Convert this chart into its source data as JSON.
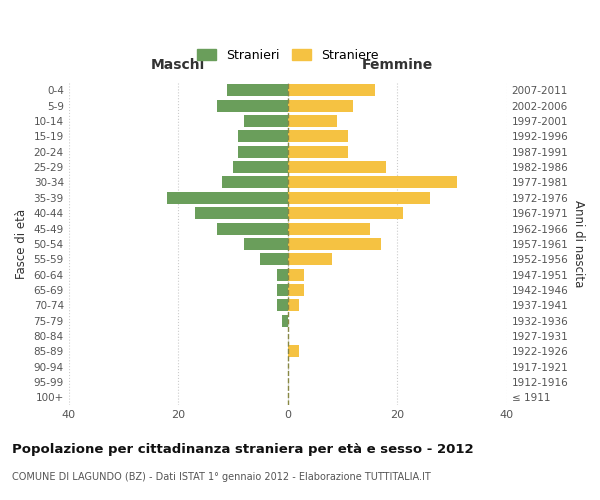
{
  "age_groups": [
    "0-4",
    "5-9",
    "10-14",
    "15-19",
    "20-24",
    "25-29",
    "30-34",
    "35-39",
    "40-44",
    "45-49",
    "50-54",
    "55-59",
    "60-64",
    "65-69",
    "70-74",
    "75-79",
    "80-84",
    "85-89",
    "90-94",
    "95-99",
    "100+"
  ],
  "birth_years": [
    "2007-2011",
    "2002-2006",
    "1997-2001",
    "1992-1996",
    "1987-1991",
    "1982-1986",
    "1977-1981",
    "1972-1976",
    "1967-1971",
    "1962-1966",
    "1957-1961",
    "1952-1956",
    "1947-1951",
    "1942-1946",
    "1937-1941",
    "1932-1936",
    "1927-1931",
    "1922-1926",
    "1917-1921",
    "1912-1916",
    "≤ 1911"
  ],
  "maschi": [
    11,
    13,
    8,
    9,
    9,
    10,
    12,
    22,
    17,
    13,
    8,
    5,
    2,
    2,
    2,
    1,
    0,
    0,
    0,
    0,
    0
  ],
  "femmine": [
    16,
    12,
    9,
    11,
    11,
    18,
    31,
    26,
    21,
    15,
    17,
    8,
    3,
    3,
    2,
    0,
    0,
    2,
    0,
    0,
    0
  ],
  "color_maschi": "#6a9e5b",
  "color_femmine": "#f5c242",
  "title": "Popolazione per cittadinanza straniera per età e sesso - 2012",
  "subtitle": "COMUNE DI LAGUNDO (BZ) - Dati ISTAT 1° gennaio 2012 - Elaborazione TUTTITALIA.IT",
  "xlabel_left": "Maschi",
  "xlabel_right": "Femmine",
  "ylabel_left": "Fasce di età",
  "ylabel_right": "Anni di nascita",
  "legend_maschi": "Stranieri",
  "legend_femmine": "Straniere",
  "xlim": 40,
  "background_color": "#ffffff",
  "grid_color": "#cccccc"
}
